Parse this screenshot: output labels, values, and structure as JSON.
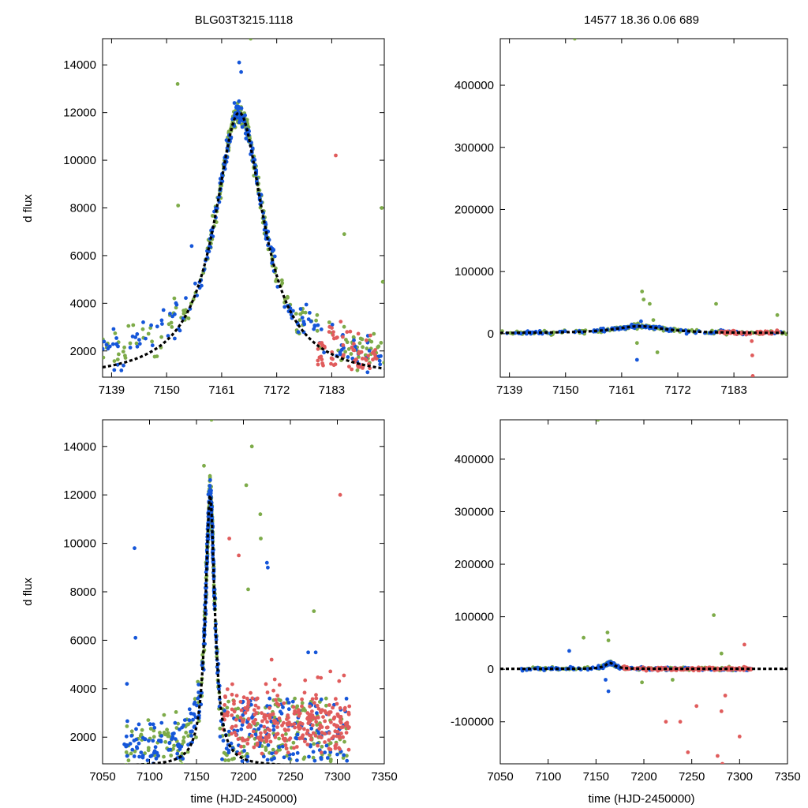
{
  "header": {
    "title": "BLG03T3215.1118",
    "stats": "14577  18.36  0.06  689"
  },
  "colors": {
    "green": "#7dab49",
    "blue": "#1556d9",
    "red": "#e05c5c",
    "fit": "#000000"
  },
  "chart_data": [
    {
      "name": "top-left",
      "type": "scatter",
      "title": "BLG03T3215.1118",
      "xlabel": "",
      "ylabel": "d flux",
      "xlim": [
        7137.2,
        7193.5
      ],
      "ylim": [
        900,
        15100
      ],
      "xticks": [
        7139,
        7150,
        7161,
        7172,
        7183
      ],
      "yticks": [
        2000,
        4000,
        6000,
        8000,
        10000,
        12000,
        14000
      ],
      "fit": {
        "peak_time": 7164.5,
        "peak_flux": 12000,
        "baseline": 800,
        "tE": 6.0
      },
      "series": [
        {
          "name": "green",
          "color": "#7dab49",
          "n": 300,
          "seed": 11,
          "outliers": [
            [
              7152.2,
              13200
            ],
            [
              7152.3,
              8100
            ],
            [
              7166.8,
              15100
            ],
            [
              7193.0,
              8000
            ],
            [
              7185.5,
              6900
            ],
            [
              7193.2,
              4900
            ]
          ]
        },
        {
          "name": "blue",
          "color": "#1556d9",
          "n": 260,
          "seed": 23,
          "outliers": [
            [
              7164.5,
              14100
            ],
            [
              7164.9,
              13700
            ],
            [
              7155.0,
              6400
            ]
          ]
        },
        {
          "name": "red",
          "color": "#e05c5c",
          "n": 70,
          "seed": 37,
          "outliers": [
            [
              7183.8,
              10200
            ]
          ]
        }
      ]
    },
    {
      "name": "top-right",
      "type": "scatter",
      "title": "14577  18.36  0.06  689",
      "xlabel": "",
      "ylabel": "",
      "xlim": [
        7137.2,
        7193.5
      ],
      "ylim": [
        -70000,
        475000
      ],
      "xticks": [
        7139,
        7150,
        7161,
        7172,
        7183
      ],
      "yticks": [
        0,
        100000,
        200000,
        300000,
        400000
      ],
      "fit": {
        "peak_time": 7164.5,
        "peak_flux": 12000,
        "baseline": 800,
        "tE": 6.0
      },
      "series": [
        {
          "name": "green",
          "color": "#7dab49",
          "n": 160,
          "seed": 41,
          "outliers": [
            [
              7151.8,
              475000
            ],
            [
              7165.0,
              68000
            ],
            [
              7165.3,
              55000
            ],
            [
              7166.5,
              48000
            ],
            [
              7167.2,
              22000
            ],
            [
              7179.5,
              48000
            ],
            [
              7191.5,
              30000
            ],
            [
              7164.0,
              -15000
            ],
            [
              7168.0,
              -30000
            ]
          ]
        },
        {
          "name": "blue",
          "color": "#1556d9",
          "n": 140,
          "seed": 53,
          "outliers": [
            [
              7164.0,
              -42000
            ],
            [
              7164.8,
              20000
            ]
          ]
        },
        {
          "name": "red",
          "color": "#e05c5c",
          "n": 50,
          "seed": 67,
          "outliers": [
            [
              7186.5,
              -12000
            ],
            [
              7186.6,
              -35000
            ],
            [
              7186.7,
              -68000
            ]
          ]
        }
      ]
    },
    {
      "name": "bottom-left",
      "type": "scatter",
      "title": "",
      "xlabel": "time (HJD-2450000)",
      "ylabel": "d flux",
      "xlim": [
        7050,
        7350
      ],
      "ylim": [
        900,
        15100
      ],
      "xticks": [
        7050,
        7100,
        7150,
        7200,
        7250,
        7300,
        7350
      ],
      "yticks": [
        2000,
        4000,
        6000,
        8000,
        10000,
        12000,
        14000
      ],
      "fit": {
        "peak_time": 7164.5,
        "peak_flux": 12000,
        "baseline": 800,
        "tE": 6.0
      },
      "series": [
        {
          "name": "green",
          "color": "#7dab49",
          "n": 380,
          "seed": 71,
          "outliers": [
            [
              7166.0,
              15100
            ],
            [
              7209.0,
              14000
            ],
            [
              7203.0,
              12400
            ],
            [
              7218.0,
              11200
            ],
            [
              7218.5,
              10200
            ],
            [
              7158.0,
              13200
            ],
            [
              7205.0,
              8100
            ],
            [
              7275.0,
              7200
            ]
          ]
        },
        {
          "name": "blue",
          "color": "#1556d9",
          "n": 420,
          "seed": 83,
          "outliers": [
            [
              7084.0,
              9800
            ],
            [
              7085.0,
              6100
            ],
            [
              7076.0,
              4200
            ],
            [
              7225.0,
              9200
            ],
            [
              7226.0,
              9000
            ],
            [
              7269.0,
              5500
            ],
            [
              7277.0,
              5500
            ]
          ]
        },
        {
          "name": "red",
          "color": "#e05c5c",
          "n": 300,
          "seed": 97,
          "outliers": [
            [
              7185.0,
              10200
            ],
            [
              7195.0,
              9500
            ],
            [
              7303.0,
              12000
            ],
            [
              7230.0,
              5200
            ]
          ]
        }
      ]
    },
    {
      "name": "bottom-right",
      "type": "scatter",
      "title": "",
      "xlabel": "time (HJD-2450000)",
      "ylabel": "",
      "xlim": [
        7050,
        7350
      ],
      "ylim": [
        -180000,
        475000
      ],
      "xticks": [
        7050,
        7100,
        7150,
        7200,
        7250,
        7300,
        7350
      ],
      "yticks": [
        -100000,
        0,
        100000,
        200000,
        300000,
        400000
      ],
      "fit": {
        "peak_time": 7164.5,
        "peak_flux": 12000,
        "baseline": 800,
        "tE": 6.0
      },
      "series": [
        {
          "name": "green",
          "color": "#7dab49",
          "n": 200,
          "seed": 101,
          "outliers": [
            [
              7152.0,
              475000
            ],
            [
              7273.0,
              103000
            ],
            [
              7162.0,
              70000
            ],
            [
              7163.0,
              55000
            ],
            [
              7137.0,
              60000
            ],
            [
              7281.0,
              30000
            ],
            [
              7198.0,
              -25000
            ],
            [
              7230.0,
              -20000
            ]
          ]
        },
        {
          "name": "blue",
          "color": "#1556d9",
          "n": 180,
          "seed": 113,
          "outliers": [
            [
              7122.0,
              35000
            ],
            [
              7163.0,
              -42000
            ],
            [
              7160.0,
              -20000
            ]
          ]
        },
        {
          "name": "red",
          "color": "#e05c5c",
          "n": 160,
          "seed": 127,
          "outliers": [
            [
              7282.0,
              -180000
            ],
            [
              7277.0,
              -165000
            ],
            [
              7246.0,
              -158000
            ],
            [
              7300.0,
              -128000
            ],
            [
              7238.0,
              -100000
            ],
            [
              7223.0,
              -100000
            ],
            [
              7281.0,
              -80000
            ],
            [
              7305.0,
              47000
            ],
            [
              7285.0,
              -50000
            ],
            [
              7255.0,
              -70000
            ]
          ]
        }
      ]
    }
  ]
}
